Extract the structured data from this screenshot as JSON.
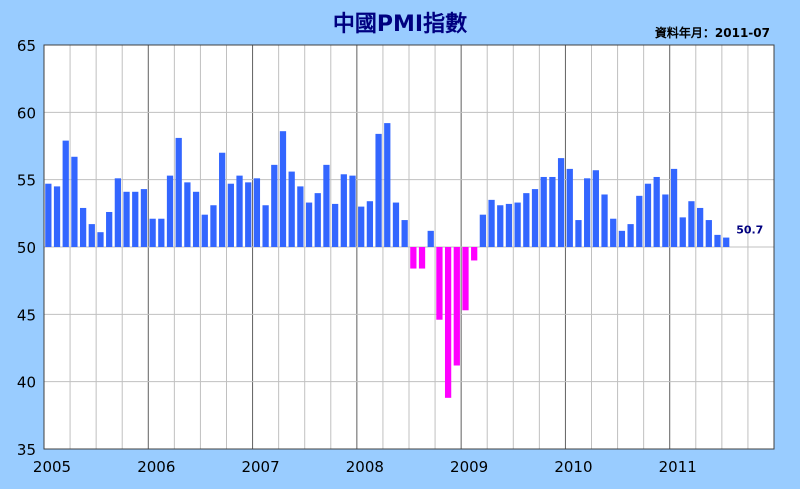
{
  "title": "中國PMI指數",
  "source_note": "資料年月：2011-07",
  "colors": {
    "background": "#99CCFF",
    "plot_background": "#FFFFFF",
    "positive_bar": "#3366FF",
    "negative_bar": "#FF00FF",
    "grid": "#C0C0C0",
    "title": "#000080",
    "label": "#000080"
  },
  "chart_data": {
    "type": "bar",
    "baseline": 50,
    "ylim": [
      35,
      65
    ],
    "yticks": [
      35,
      40,
      45,
      50,
      55,
      60,
      65
    ],
    "xlim": [
      "2005-01",
      "2011-12"
    ],
    "x_tick_labels": [
      "2005",
      "2006",
      "2007",
      "2008",
      "2009",
      "2010",
      "2011"
    ],
    "grid": true,
    "start_month": "2005-01",
    "values": [
      54.7,
      54.5,
      57.9,
      56.7,
      52.9,
      51.7,
      51.1,
      52.6,
      55.1,
      54.1,
      54.1,
      54.3,
      52.1,
      52.1,
      55.3,
      58.1,
      54.8,
      54.1,
      52.4,
      53.1,
      57.0,
      54.7,
      55.3,
      54.8,
      55.1,
      53.1,
      56.1,
      58.6,
      55.6,
      54.5,
      53.3,
      54.0,
      56.1,
      53.2,
      55.4,
      55.3,
      53.0,
      53.4,
      58.4,
      59.2,
      53.3,
      52.0,
      48.4,
      48.4,
      51.2,
      44.6,
      38.8,
      41.2,
      45.3,
      49.0,
      52.4,
      53.5,
      53.1,
      53.2,
      53.3,
      54.0,
      54.3,
      55.2,
      55.2,
      56.6,
      55.8,
      52.0,
      55.1,
      55.7,
      53.9,
      52.1,
      51.2,
      51.7,
      53.8,
      54.7,
      55.2,
      53.9,
      55.8,
      52.2,
      53.4,
      52.9,
      52.0,
      50.9,
      50.7
    ],
    "last_value_label": "50.7"
  }
}
